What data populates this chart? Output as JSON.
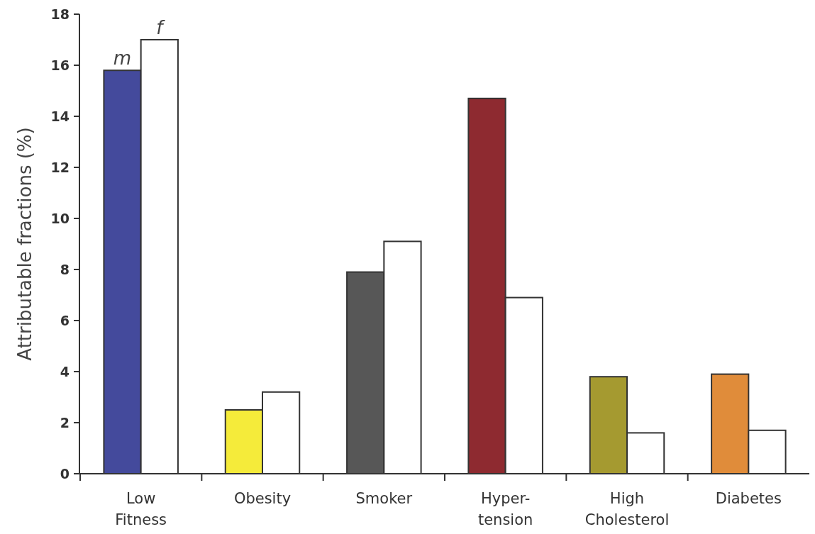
{
  "chart_data": {
    "type": "bar",
    "ylabel": "Attributable fractions (%)",
    "categories": [
      "Low\nFitness",
      "Obesity",
      "Smoker",
      "Hyper-\ntension",
      "High\nCholesterol",
      "Diabetes"
    ],
    "series": [
      {
        "name": "m",
        "colors": [
          "#444a9c",
          "#f5eb3a",
          "#575757",
          "#8e2a30",
          "#a59a30",
          "#e08c3a"
        ],
        "values": [
          15.8,
          2.5,
          7.9,
          14.7,
          3.8,
          3.9
        ]
      },
      {
        "name": "f",
        "color": "#ffffff",
        "values": [
          17.0,
          3.2,
          9.1,
          6.9,
          1.6,
          1.7
        ]
      }
    ],
    "ylim": [
      0,
      18
    ],
    "yticks": [
      0,
      2,
      4,
      6,
      8,
      10,
      12,
      14,
      16,
      18
    ],
    "grid": false,
    "legend": false
  }
}
